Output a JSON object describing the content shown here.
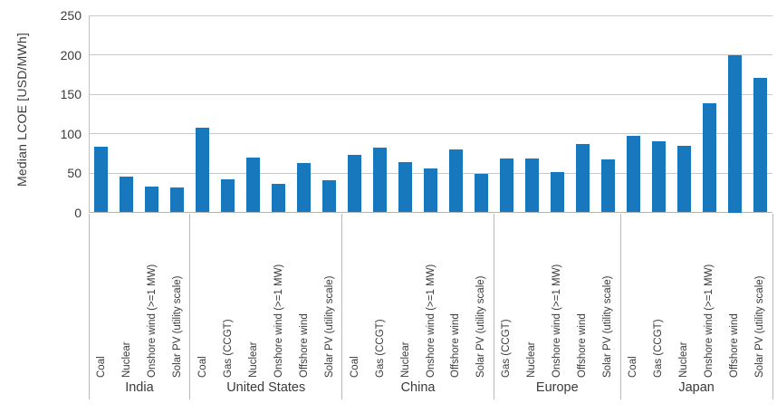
{
  "chart_data": {
    "type": "bar",
    "title": "",
    "ylabel": "Median LCOE [USD/MWh]",
    "xlabel": "",
    "ylim": [
      0,
      250
    ],
    "yticks": [
      0,
      50,
      100,
      150,
      200,
      250
    ],
    "grid": true,
    "legend": "none",
    "bar_color": "#1878be",
    "gridline_color": "#c9c9c9",
    "text_color": "#3a3a3a",
    "groups": [
      {
        "name": "India",
        "bars": [
          {
            "label": "Coal",
            "value": 83
          },
          {
            "label": "Nuclear",
            "value": 45
          },
          {
            "label": "Onshore wind (>=1 MW)",
            "value": 33
          },
          {
            "label": "Solar PV (utility scale)",
            "value": 32
          }
        ]
      },
      {
        "name": "United States",
        "bars": [
          {
            "label": "Coal",
            "value": 108
          },
          {
            "label": "Gas (CCGT)",
            "value": 42
          },
          {
            "label": "Nuclear",
            "value": 70
          },
          {
            "label": "Onshore wind (>=1 MW)",
            "value": 36
          },
          {
            "label": "Offshore wind",
            "value": 63
          },
          {
            "label": "Solar PV (utility scale)",
            "value": 41
          }
        ]
      },
      {
        "name": "China",
        "bars": [
          {
            "label": "Coal",
            "value": 73
          },
          {
            "label": "Gas (CCGT)",
            "value": 82
          },
          {
            "label": "Nuclear",
            "value": 64
          },
          {
            "label": "Onshore wind (>=1 MW)",
            "value": 56
          },
          {
            "label": "Offshore wind",
            "value": 80
          },
          {
            "label": "Solar PV (utility scale)",
            "value": 49
          }
        ]
      },
      {
        "name": "Europe",
        "bars": [
          {
            "label": "Gas (CCGT)",
            "value": 68
          },
          {
            "label": "Nuclear",
            "value": 68
          },
          {
            "label": "Onshore wind (>=1 MW)",
            "value": 51
          },
          {
            "label": "Offshore wind",
            "value": 87
          },
          {
            "label": "Solar PV (utility scale)",
            "value": 67
          }
        ]
      },
      {
        "name": "Japan",
        "bars": [
          {
            "label": "Coal",
            "value": 97
          },
          {
            "label": "Gas (CCGT)",
            "value": 90
          },
          {
            "label": "Nuclear",
            "value": 84
          },
          {
            "label": "Onshore wind (>=1 MW)",
            "value": 139
          },
          {
            "label": "Offshore wind",
            "value": 200
          },
          {
            "label": "Solar PV (utility scale)",
            "value": 171
          }
        ]
      }
    ]
  }
}
